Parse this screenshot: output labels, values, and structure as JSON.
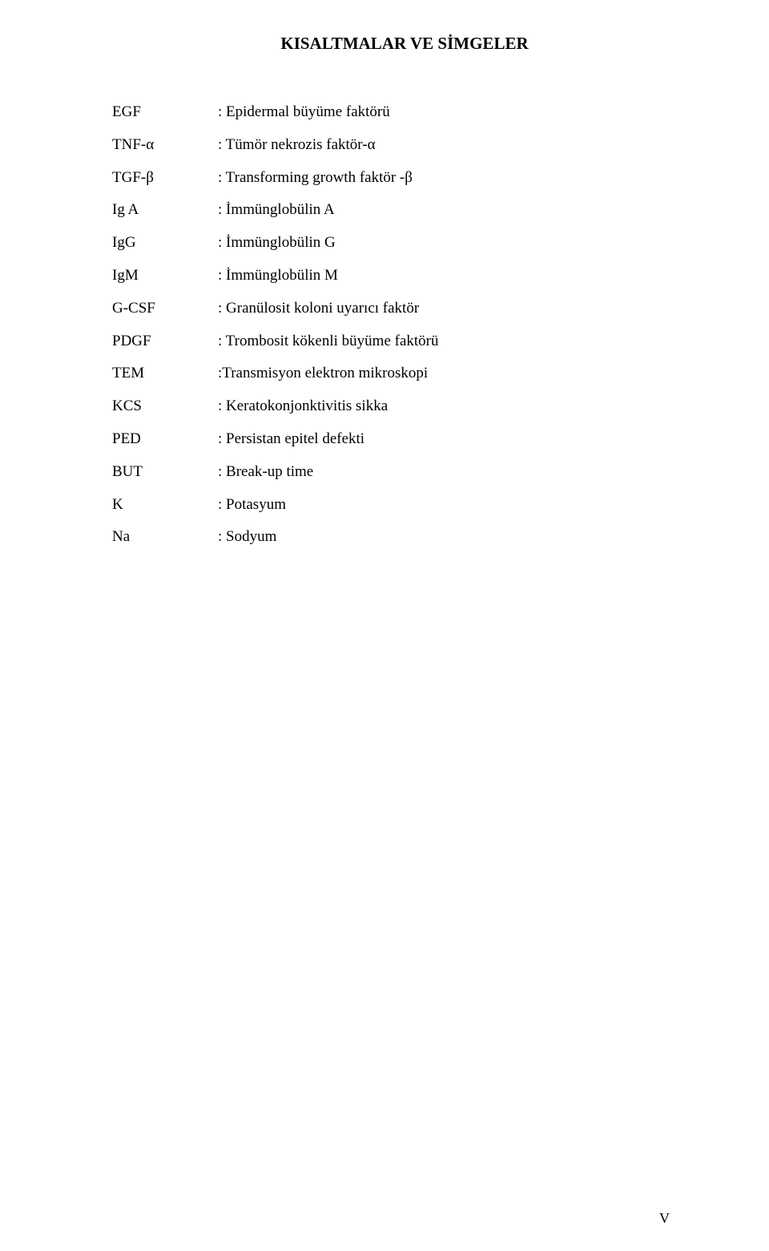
{
  "page": {
    "title": "KISALTMALAR VE SİMGELER",
    "page_number": "V"
  },
  "definitions": [
    {
      "term": "EGF",
      "desc": ": Epidermal büyüme faktörü"
    },
    {
      "term": "TNF-α",
      "desc": ": Tümör nekrozis faktör-α"
    },
    {
      "term": "TGF-β",
      "desc": ": Transforming growth faktör -β"
    },
    {
      "term": "Ig A",
      "desc": ": İmmünglobülin A"
    },
    {
      "term": "IgG",
      "desc": ":  İmmünglobülin G"
    },
    {
      "term": "IgM",
      "desc": ": İmmünglobülin M"
    },
    {
      "term": "G-CSF",
      "desc": ": Granülosit koloni uyarıcı faktör"
    },
    {
      "term": "PDGF",
      "desc": ": Trombosit kökenli büyüme faktörü"
    },
    {
      "term": "TEM",
      "desc": ":Transmisyon elektron mikroskopi"
    },
    {
      "term": "KCS",
      "desc": ": Keratokonjonktivitis sikka"
    },
    {
      "term": "PED",
      "desc": ": Persistan epitel defekti"
    },
    {
      "term": "BUT",
      "desc": ": Break-up time"
    },
    {
      "term": "K",
      "desc": ": Potasyum"
    },
    {
      "term": "Na",
      "desc": ": Sodyum"
    }
  ],
  "style": {
    "background_color": "#ffffff",
    "text_color": "#000000",
    "title_fontsize": 21,
    "body_fontsize": 19,
    "font_family": "Times New Roman"
  }
}
